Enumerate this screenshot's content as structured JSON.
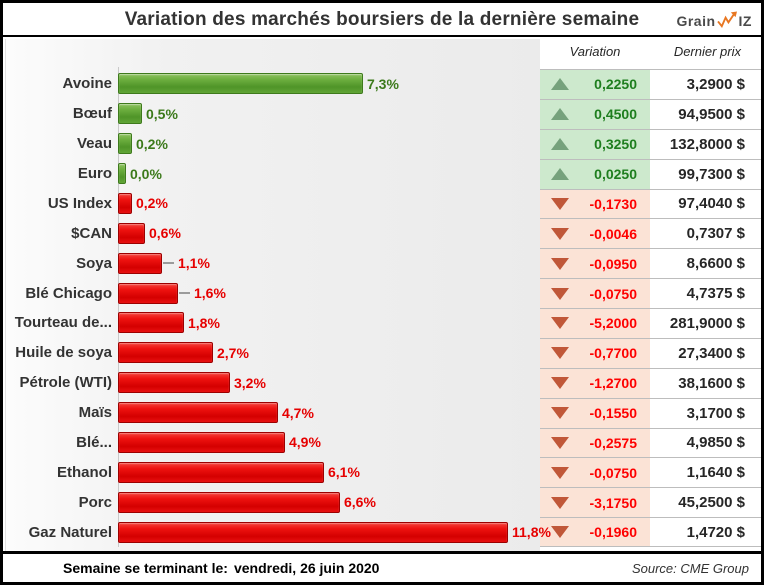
{
  "title": "Variation des marchés boursiers de la dernière semaine",
  "logo": {
    "part1": "Grain",
    "part2": "IZ",
    "trend_icon": "orange-stock-line-arrow",
    "accent_color": "#e87722"
  },
  "columns": {
    "variation": "Variation",
    "price": "Dernier prix"
  },
  "footer": {
    "week_label": "Semaine se terminant le:",
    "week_date": "vendredi, 26 juin 2020",
    "source": "Source: CME Group"
  },
  "colors": {
    "bar_up": "#5ea335",
    "bar_down": "#e81010",
    "cell_up_bg": "#cde9cd",
    "cell_down_bg": "#fbe3d6",
    "value_up_text": "#1e7e1e",
    "value_down_text": "#fe0000",
    "up_triangle": "#76a27c",
    "down_triangle": "#c05738",
    "logo_accent": "#e87722"
  },
  "chart_data": {
    "type": "bar",
    "orientation": "horizontal",
    "title": "Variation des marchés boursiers de la dernière semaine",
    "value_unit": "%",
    "xlim": [
      0,
      12
    ],
    "grid": false,
    "legend": false,
    "note": "bar length = absolute weekly % change; green = hausse, rouge = baisse",
    "rows": [
      {
        "label": "Avoine",
        "pct": 7.3,
        "pct_label": "7,3%",
        "direction": "up",
        "variation": "0,2250",
        "price": "3,2900 $",
        "leader": false
      },
      {
        "label": "Bœuf",
        "pct": 0.5,
        "pct_label": "0,5%",
        "direction": "up",
        "variation": "0,4500",
        "price": "94,9500 $",
        "leader": false
      },
      {
        "label": "Veau",
        "pct": 0.2,
        "pct_label": "0,2%",
        "direction": "up",
        "variation": "0,3250",
        "price": "132,8000 $",
        "leader": false
      },
      {
        "label": "Euro",
        "pct": 0.0,
        "pct_label": "0,0%",
        "direction": "up",
        "variation": "0,0250",
        "price": "99,7300 $",
        "leader": false
      },
      {
        "label": "US Index",
        "pct": 0.2,
        "pct_label": "0,2%",
        "direction": "down",
        "variation": "-0,1730",
        "price": "97,4040 $",
        "leader": false
      },
      {
        "label": "$CAN",
        "pct": 0.6,
        "pct_label": "0,6%",
        "direction": "down",
        "variation": "-0,0046",
        "price": "0,7307 $",
        "leader": false
      },
      {
        "label": "Soya",
        "pct": 1.1,
        "pct_label": "1,1%",
        "direction": "down",
        "variation": "-0,0950",
        "price": "8,6600 $",
        "leader": true
      },
      {
        "label": "Blé Chicago",
        "pct": 1.6,
        "pct_label": "1,6%",
        "direction": "down",
        "variation": "-0,0750",
        "price": "4,7375 $",
        "leader": true
      },
      {
        "label": "Tourteau de...",
        "pct": 1.8,
        "pct_label": "1,8%",
        "direction": "down",
        "variation": "-5,2000",
        "price": "281,9000 $",
        "leader": false
      },
      {
        "label": "Huile de soya",
        "pct": 2.7,
        "pct_label": "2,7%",
        "direction": "down",
        "variation": "-0,7700",
        "price": "27,3400 $",
        "leader": false
      },
      {
        "label": "Pétrole (WTI)",
        "pct": 3.2,
        "pct_label": "3,2%",
        "direction": "down",
        "variation": "-1,2700",
        "price": "38,1600 $",
        "leader": false
      },
      {
        "label": "Maïs",
        "pct": 4.7,
        "pct_label": "4,7%",
        "direction": "down",
        "variation": "-0,1550",
        "price": "3,1700 $",
        "leader": false
      },
      {
        "label": "Blé...",
        "pct": 4.9,
        "pct_label": "4,9%",
        "direction": "down",
        "variation": "-0,2575",
        "price": "4,9850 $",
        "leader": false
      },
      {
        "label": "Ethanol",
        "pct": 6.1,
        "pct_label": "6,1%",
        "direction": "down",
        "variation": "-0,0750",
        "price": "1,1640 $",
        "leader": false
      },
      {
        "label": "Porc",
        "pct": 6.6,
        "pct_label": "6,6%",
        "direction": "down",
        "variation": "-3,1750",
        "price": "45,2500 $",
        "leader": false
      },
      {
        "label": "Gaz Naturel",
        "pct": 11.8,
        "pct_label": "11,8%",
        "direction": "down",
        "variation": "-0,1960",
        "price": "1,4720 $",
        "leader": false
      }
    ]
  }
}
